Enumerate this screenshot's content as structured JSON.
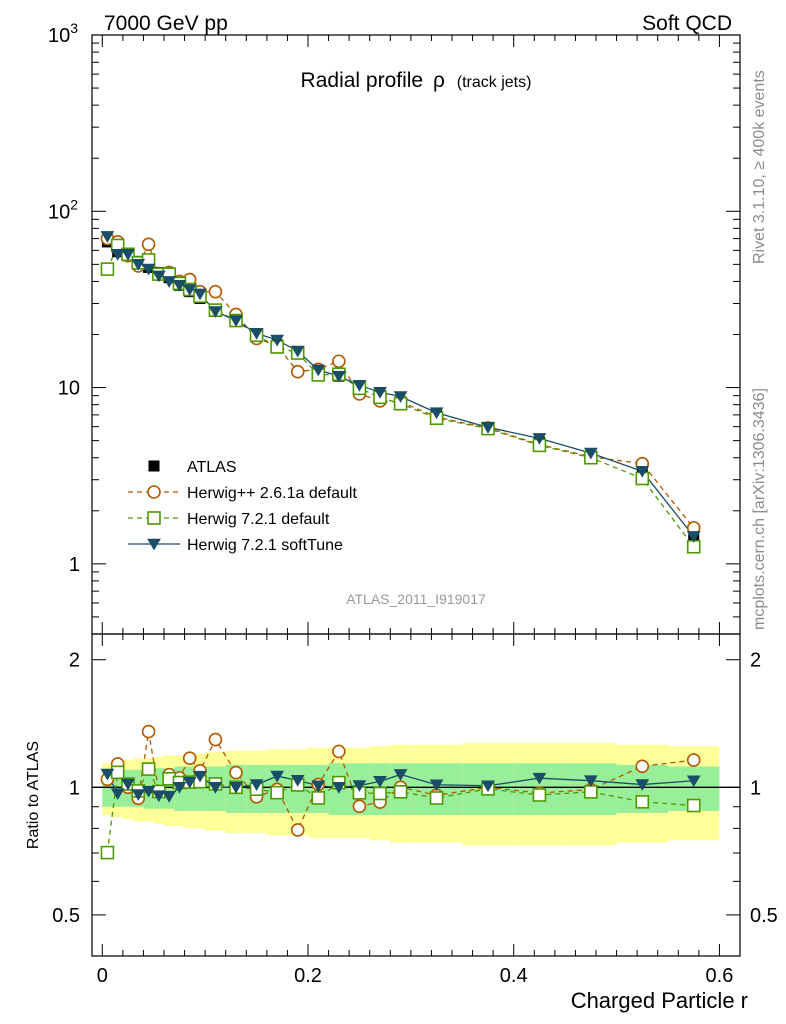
{
  "header": {
    "left": "7000 GeV pp",
    "right": "Soft QCD"
  },
  "side_labels": {
    "rivet": "Rivet 3.1.10, ≥ 400k events",
    "mcplots": "mcplots.cern.ch [arXiv:1306.3436]"
  },
  "watermark": "ATLAS_2011_I919017",
  "chart_data": {
    "type": "line",
    "title": "Radial profile",
    "title_symbol": "ρ",
    "title_note": "(track jets)",
    "xlabel": "Charged Particle r",
    "ylabel": "",
    "ratio_ylabel": "Ratio to ATLAS",
    "xlim": [
      -0.01,
      0.62
    ],
    "ylim": [
      0.4,
      1000
    ],
    "yscale": "log",
    "ratio_ylim": [
      0.4,
      2.3
    ],
    "x_ticks": [
      "0",
      "0.2",
      "0.4",
      "0.6"
    ],
    "x_tick_values": [
      0,
      0.2,
      0.4,
      0.6
    ],
    "y_ticks": [
      "1",
      "10",
      "10^2",
      "10^3"
    ],
    "y_tick_values": [
      1,
      10,
      100,
      1000
    ],
    "ratio_y_ticks": [
      "0.5",
      "1",
      "2"
    ],
    "ratio_y_tick_values": [
      0.5,
      1,
      2
    ],
    "x": [
      0.005,
      0.015,
      0.025,
      0.035,
      0.045,
      0.055,
      0.065,
      0.075,
      0.085,
      0.095,
      0.11,
      0.13,
      0.15,
      0.17,
      0.19,
      0.21,
      0.23,
      0.25,
      0.27,
      0.29,
      0.325,
      0.375,
      0.425,
      0.475,
      0.525,
      0.575
    ],
    "band_edges": [
      0,
      0.01,
      0.02,
      0.03,
      0.04,
      0.05,
      0.06,
      0.07,
      0.08,
      0.09,
      0.1,
      0.12,
      0.14,
      0.16,
      0.18,
      0.2,
      0.22,
      0.24,
      0.26,
      0.28,
      0.3,
      0.35,
      0.4,
      0.45,
      0.5,
      0.55,
      0.6
    ],
    "ratio_band_green": [
      0.1,
      0.1,
      0.1,
      0.1,
      0.11,
      0.11,
      0.11,
      0.12,
      0.12,
      0.12,
      0.12,
      0.13,
      0.13,
      0.13,
      0.13,
      0.13,
      0.14,
      0.14,
      0.14,
      0.14,
      0.14,
      0.14,
      0.14,
      0.14,
      0.13,
      0.12
    ],
    "ratio_band_yellow": [
      0.14,
      0.15,
      0.16,
      0.17,
      0.17,
      0.18,
      0.19,
      0.19,
      0.2,
      0.2,
      0.21,
      0.22,
      0.22,
      0.23,
      0.23,
      0.24,
      0.24,
      0.24,
      0.25,
      0.26,
      0.26,
      0.27,
      0.27,
      0.27,
      0.26,
      0.25
    ],
    "series": [
      {
        "name": "ATLAS",
        "color": "#000000",
        "marker": "square-filled",
        "line": "none",
        "values": [
          67,
          59,
          56,
          52,
          48,
          45,
          42,
          38,
          35,
          32,
          27,
          24,
          20,
          17.5,
          15.5,
          12.5,
          11.6,
          10.2,
          9.1,
          8.3,
          7.1,
          5.9,
          4.9,
          4.1,
          3.3,
          1.38
        ]
      },
      {
        "name": "Herwig++ 2.6.1a default",
        "color": "#b35900",
        "marker": "circle-open",
        "line": "dashed",
        "values": [
          70,
          67,
          56,
          49,
          65,
          44,
          45,
          40,
          41,
          35,
          35,
          26,
          19,
          17.3,
          12.3,
          12.7,
          14.1,
          9.2,
          8.4,
          8.3,
          6.8,
          5.9,
          4.75,
          4.05,
          3.7,
          1.6
        ]
      },
      {
        "name": "Herwig 7.2.1 default",
        "color": "#4d9900",
        "marker": "square-open",
        "line": "dashed",
        "values": [
          47,
          64,
          57,
          51,
          53,
          44,
          44,
          39,
          36,
          33,
          27.5,
          24,
          19.8,
          17,
          15.7,
          11.8,
          11.9,
          9.9,
          8.8,
          8.1,
          6.7,
          5.85,
          4.7,
          4.0,
          3.05,
          1.25
        ]
      },
      {
        "name": "Herwig 7.2.1 softTune",
        "color": "#1a4d66",
        "marker": "triangle-down-filled",
        "line": "solid",
        "values": [
          72,
          57,
          57,
          50,
          47,
          43,
          40,
          38,
          36,
          34,
          27,
          24,
          20.3,
          18.6,
          16.1,
          12.6,
          11.6,
          10.3,
          9.4,
          8.9,
          7.2,
          5.95,
          5.15,
          4.25,
          3.35,
          1.43
        ]
      }
    ],
    "legend_position": "lower-left"
  }
}
